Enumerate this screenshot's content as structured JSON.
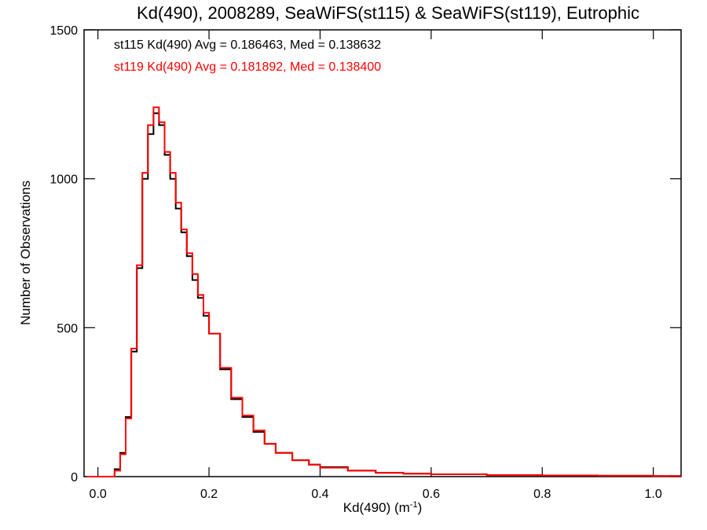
{
  "chart_data": {
    "type": "line",
    "title": "Kd(490), 2008289, SeaWiFS(st115) & SeaWiFS(st119), Eutrophic",
    "xlabel_main": "Kd(490) (m",
    "xlabel_sup": "-1",
    "xlabel_end": ")",
    "ylabel": "Number of Observations",
    "xlim": [
      -0.025,
      1.05
    ],
    "ylim": [
      0,
      1500
    ],
    "xticks": [
      0.0,
      0.2,
      0.4,
      0.6,
      0.8,
      1.0
    ],
    "xtick_labels": [
      "0.0",
      "0.2",
      "0.4",
      "0.6",
      "0.8",
      "1.0"
    ],
    "yticks": [
      0,
      500,
      1000,
      1500
    ],
    "ytick_labels": [
      "0",
      "500",
      "1000",
      "1500"
    ],
    "grid": false,
    "legend_position": "top-left",
    "series": [
      {
        "name": "st115 Kd(490) Avg = 0.186463, Med = 0.138632",
        "color": "#000000",
        "x": [
          -0.02,
          0.0,
          0.02,
          0.03,
          0.04,
          0.05,
          0.06,
          0.07,
          0.08,
          0.09,
          0.1,
          0.11,
          0.12,
          0.13,
          0.14,
          0.15,
          0.16,
          0.17,
          0.18,
          0.19,
          0.2,
          0.22,
          0.24,
          0.26,
          0.28,
          0.3,
          0.32,
          0.35,
          0.38,
          0.4,
          0.45,
          0.5,
          0.55,
          0.6,
          0.7,
          0.8,
          0.9,
          1.0,
          1.05
        ],
        "y": [
          0,
          0,
          0,
          25,
          80,
          200,
          420,
          700,
          1000,
          1150,
          1220,
          1180,
          1080,
          1000,
          900,
          820,
          740,
          660,
          600,
          540,
          480,
          360,
          260,
          200,
          150,
          110,
          80,
          55,
          40,
          32,
          20,
          13,
          10,
          8,
          5,
          4,
          3,
          2,
          2
        ]
      },
      {
        "name": "st119 Kd(490) Avg = 0.181892, Med = 0.138400",
        "color": "#ff0000",
        "x": [
          -0.02,
          0.0,
          0.02,
          0.03,
          0.04,
          0.05,
          0.06,
          0.07,
          0.08,
          0.09,
          0.1,
          0.11,
          0.12,
          0.13,
          0.14,
          0.15,
          0.16,
          0.17,
          0.18,
          0.19,
          0.2,
          0.22,
          0.24,
          0.26,
          0.28,
          0.3,
          0.32,
          0.35,
          0.38,
          0.4,
          0.45,
          0.5,
          0.55,
          0.6,
          0.7,
          0.8,
          0.9,
          1.0,
          1.05
        ],
        "y": [
          0,
          0,
          0,
          20,
          75,
          195,
          430,
          710,
          1020,
          1180,
          1240,
          1190,
          1090,
          1020,
          920,
          830,
          750,
          680,
          610,
          550,
          480,
          365,
          265,
          205,
          155,
          110,
          80,
          55,
          40,
          30,
          20,
          13,
          10,
          8,
          5,
          4,
          3,
          2,
          2
        ]
      }
    ]
  }
}
